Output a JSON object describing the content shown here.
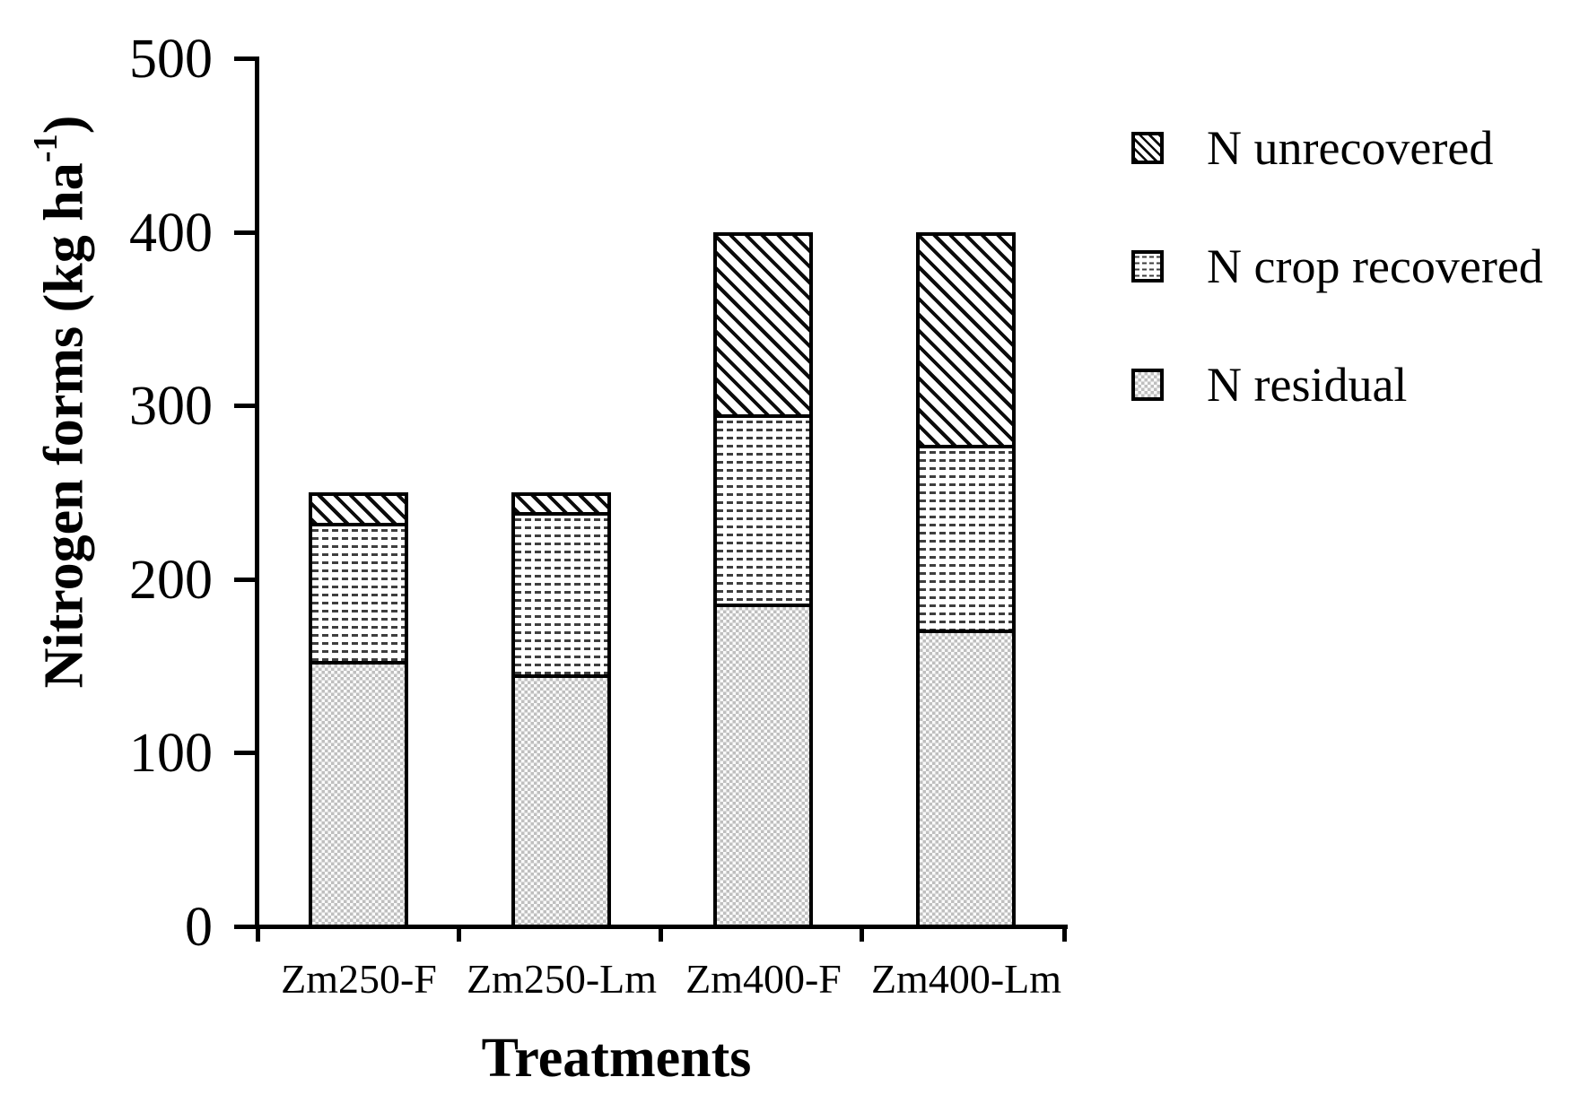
{
  "colors": {
    "ink": "#000000",
    "background": "#ffffff",
    "dash_fill": "#3e3e3e",
    "stipple_fill": "#bfbfbf"
  },
  "y_axis": {
    "title_main": "Nitrogen forms (kg ha",
    "title_sup": "-1",
    "title_end": ")",
    "ticks": [
      "500",
      "400",
      "300",
      "200",
      "100",
      "0"
    ]
  },
  "x_axis": {
    "title": "Treatments"
  },
  "legend": [
    {
      "label": "N unrecovered",
      "pattern": "hatch"
    },
    {
      "label": "N crop recovered",
      "pattern": "dashes"
    },
    {
      "label": "N residual",
      "pattern": "stipple"
    }
  ],
  "chart_data": {
    "type": "bar",
    "stacked": true,
    "title": "",
    "xlabel": "Treatments",
    "ylabel": "Nitrogen forms (kg ha-1)",
    "categories": [
      "Zm250-F",
      "Zm250-Lm",
      "Zm400-F",
      "Zm400-Lm"
    ],
    "series": [
      {
        "name": "N residual",
        "pattern": "stipple",
        "values": [
          154,
          146,
          186,
          171
        ]
      },
      {
        "name": "N crop recovered",
        "pattern": "dashes",
        "values": [
          80,
          94,
          109,
          106
        ]
      },
      {
        "name": "N unrecovered",
        "pattern": "hatch",
        "values": [
          16,
          10,
          105,
          123
        ]
      }
    ],
    "totals": [
      250,
      250,
      400,
      400
    ],
    "ylim": [
      0,
      500
    ],
    "ytick_interval": 100,
    "grid": false,
    "legend_position": "upper right outside"
  }
}
